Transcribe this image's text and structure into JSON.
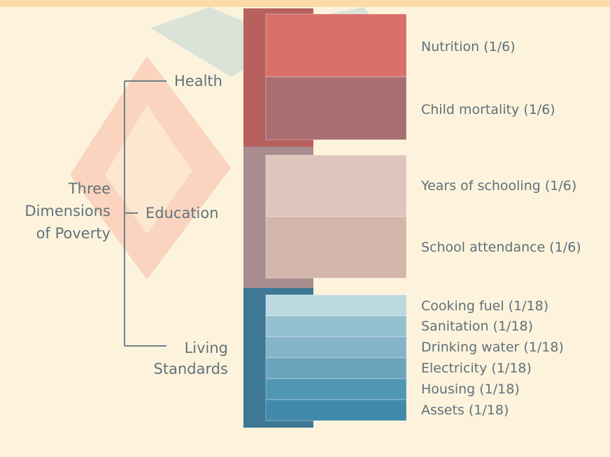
{
  "root_label": [
    "Three",
    "Dimensions",
    "of Poverty"
  ],
  "dimensions": [
    {
      "label": [
        "Health"
      ],
      "color": "#b8605e"
    },
    {
      "label": [
        "Education"
      ],
      "color": "#a98c8e"
    },
    {
      "label": [
        "Living",
        "Standards"
      ],
      "color": "#3f7894"
    }
  ],
  "indicators": [
    {
      "label": "Nutrition (1/6)",
      "weight": 0.1667,
      "color": "#d9706a",
      "dimension": "Health"
    },
    {
      "label": "Child mortality (1/6)",
      "weight": 0.1667,
      "color": "#a86e72",
      "dimension": "Health"
    },
    {
      "label": "Years of schooling (1/6)",
      "weight": 0.1667,
      "color": "#dec5bc",
      "dimension": "Education"
    },
    {
      "label": "School attendance (1/6)",
      "weight": 0.1667,
      "color": "#d3b6aa",
      "dimension": "Education"
    },
    {
      "label": "Cooking fuel (1/18)",
      "weight": 0.0556,
      "color": "#bcd9e0",
      "dimension": "Living Standards"
    },
    {
      "label": "Sanitation (1/18)",
      "weight": 0.0556,
      "color": "#95c0d0",
      "dimension": "Living Standards"
    },
    {
      "label": "Drinking water (1/18)",
      "weight": 0.0556,
      "color": "#84b4c8",
      "dimension": "Living Standards"
    },
    {
      "label": "Electricity (1/18)",
      "weight": 0.0556,
      "color": "#6aa5bd",
      "dimension": "Living Standards"
    },
    {
      "label": "Housing (1/18)",
      "weight": 0.0556,
      "color": "#4f97b5",
      "dimension": "Living Standards"
    },
    {
      "label": "Assets (1/18)",
      "weight": 0.0556,
      "color": "#4089aa",
      "dimension": "Living Standards"
    }
  ],
  "colors": {
    "background": "#fdf3dc",
    "bracket": "#6e7f88",
    "text": "#5f707a"
  }
}
